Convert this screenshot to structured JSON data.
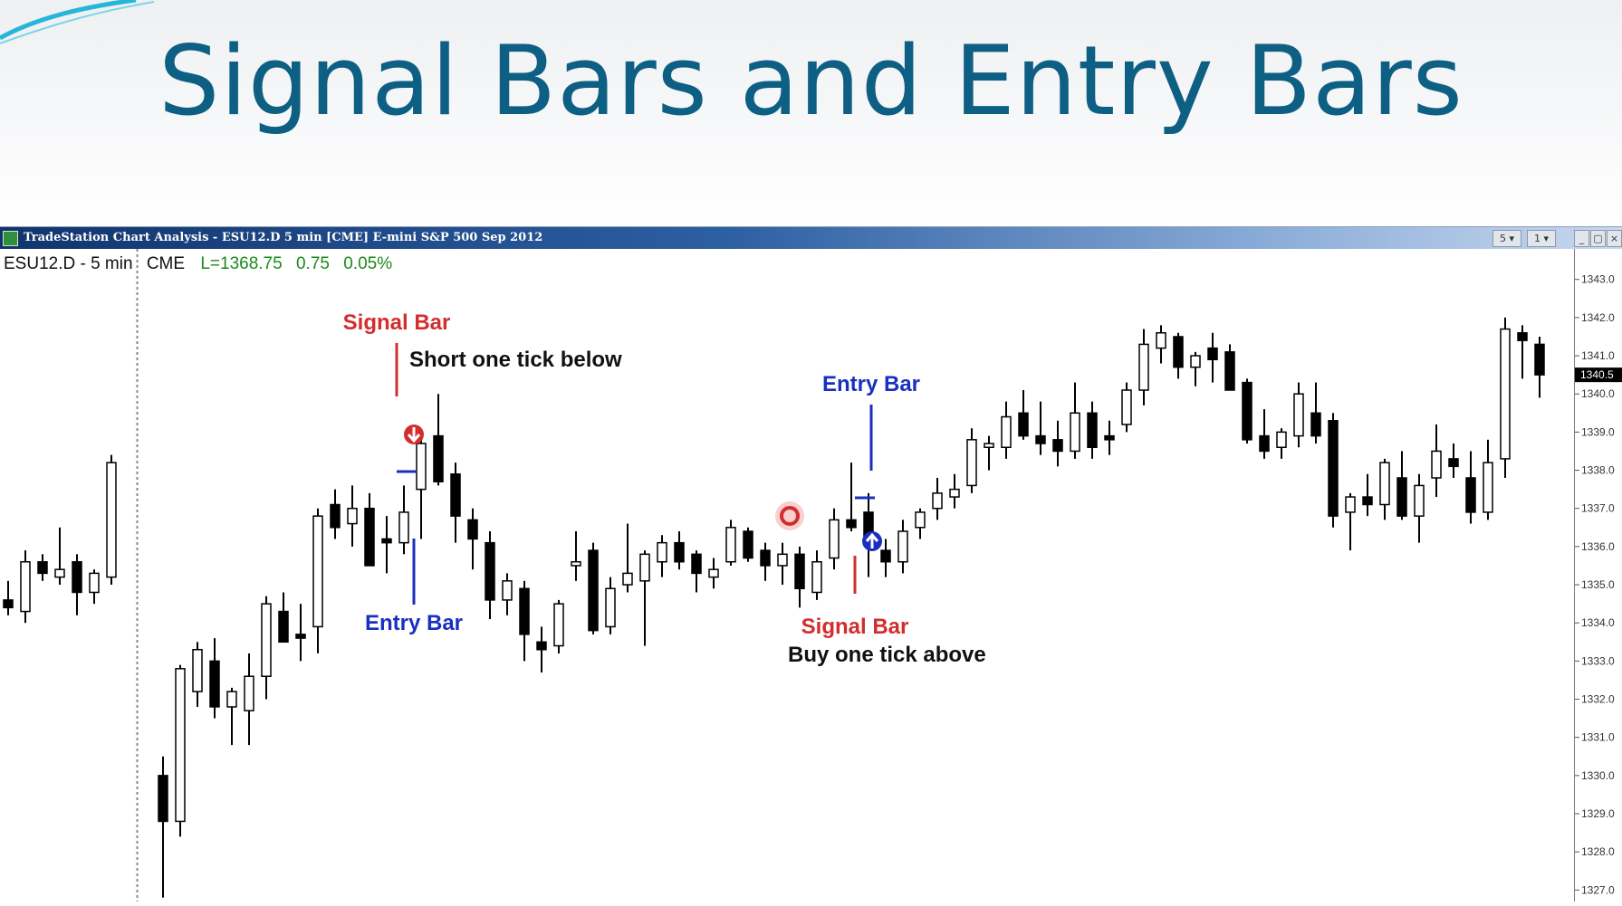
{
  "slide": {
    "title": "Signal Bars and Entry Bars"
  },
  "window": {
    "title": "TradeStation Chart Analysis - ESU12.D 5 min [CME] E-mini S&P 500 Sep 2012",
    "buttons": [
      "5 ▾",
      "1 ▾",
      "_",
      "▢",
      "×"
    ]
  },
  "chart_header": {
    "symbol": "ESU12.D - 5 min",
    "exchange": "CME",
    "last": "L=1368.75",
    "change": "0.75",
    "change_pct": "0.05%"
  },
  "annotations": {
    "signal_bar_1": "Signal Bar",
    "short_note": "Short one tick below",
    "entry_bar_1": "Entry Bar",
    "entry_bar_2": "Entry Bar",
    "signal_bar_2": "Signal Bar",
    "buy_note": "Buy one tick above"
  },
  "colors": {
    "title": "#0e5f84",
    "signal": "#d32d2d",
    "entry": "#1a2fbf",
    "up_candle": "#ffffff",
    "down_candle": "#000000",
    "last_green": "#1c8a1c"
  },
  "chart_data": {
    "type": "candlestick",
    "title": "",
    "xlabel": "",
    "ylabel": "",
    "ylim": [
      1326.7,
      1343.8
    ],
    "y_ticks": [
      {
        "value": 1343,
        "label": "1343.0"
      },
      {
        "value": 1342,
        "label": "1342.0"
      },
      {
        "value": 1341,
        "label": "1341.0"
      },
      {
        "value": 1340,
        "label": "1340.0"
      },
      {
        "value": 1339,
        "label": "1339.0"
      },
      {
        "value": 1338,
        "label": "1338.0"
      },
      {
        "value": 1337,
        "label": "1337.0"
      },
      {
        "value": 1336,
        "label": "1336.0"
      },
      {
        "value": 1335,
        "label": "1335.0"
      },
      {
        "value": 1334,
        "label": "1334.0"
      },
      {
        "value": 1333,
        "label": "1333.0"
      },
      {
        "value": 1332,
        "label": "1332.0"
      },
      {
        "value": 1331,
        "label": "1331.0"
      },
      {
        "value": 1330,
        "label": "1330.0"
      },
      {
        "value": 1329,
        "label": "1329.0"
      },
      {
        "value": 1328,
        "label": "1328.0"
      },
      {
        "value": 1327,
        "label": "1327.0"
      }
    ],
    "current_price_label": "1340.5",
    "session_break_after_index": 6,
    "bars": [
      {
        "o": 1334.6,
        "h": 1335.1,
        "l": 1334.2,
        "c": 1334.4
      },
      {
        "o": 1334.3,
        "h": 1335.9,
        "l": 1334.0,
        "c": 1335.6
      },
      {
        "o": 1335.6,
        "h": 1335.8,
        "l": 1335.1,
        "c": 1335.3
      },
      {
        "o": 1335.2,
        "h": 1336.5,
        "l": 1335.0,
        "c": 1335.4
      },
      {
        "o": 1335.6,
        "h": 1335.8,
        "l": 1334.2,
        "c": 1334.8
      },
      {
        "o": 1334.8,
        "h": 1335.4,
        "l": 1334.5,
        "c": 1335.3
      },
      {
        "o": 1335.2,
        "h": 1338.4,
        "l": 1335.0,
        "c": 1338.2
      },
      {
        "o": 1330.0,
        "h": 1330.5,
        "l": 1326.8,
        "c": 1328.8
      },
      {
        "o": 1328.8,
        "h": 1332.9,
        "l": 1328.4,
        "c": 1332.8
      },
      {
        "o": 1332.2,
        "h": 1333.5,
        "l": 1331.8,
        "c": 1333.3
      },
      {
        "o": 1333.0,
        "h": 1333.6,
        "l": 1331.5,
        "c": 1331.8
      },
      {
        "o": 1331.8,
        "h": 1332.3,
        "l": 1330.8,
        "c": 1332.2
      },
      {
        "o": 1331.7,
        "h": 1333.2,
        "l": 1330.8,
        "c": 1332.6
      },
      {
        "o": 1332.6,
        "h": 1334.7,
        "l": 1332.0,
        "c": 1334.5
      },
      {
        "o": 1334.3,
        "h": 1334.8,
        "l": 1333.5,
        "c": 1333.5
      },
      {
        "o": 1333.7,
        "h": 1334.5,
        "l": 1333.0,
        "c": 1333.6
      },
      {
        "o": 1333.9,
        "h": 1337.0,
        "l": 1333.2,
        "c": 1336.8
      },
      {
        "o": 1337.1,
        "h": 1337.5,
        "l": 1336.2,
        "c": 1336.5
      },
      {
        "o": 1336.6,
        "h": 1337.6,
        "l": 1336.0,
        "c": 1337.0
      },
      {
        "o": 1337.0,
        "h": 1337.4,
        "l": 1335.5,
        "c": 1335.5
      },
      {
        "o": 1336.2,
        "h": 1336.8,
        "l": 1335.3,
        "c": 1336.1
      },
      {
        "o": 1336.1,
        "h": 1337.6,
        "l": 1335.8,
        "c": 1336.9
      },
      {
        "o": 1337.5,
        "h": 1338.9,
        "l": 1336.2,
        "c": 1338.7
      },
      {
        "o": 1338.9,
        "h": 1340.0,
        "l": 1337.6,
        "c": 1337.7
      },
      {
        "o": 1337.9,
        "h": 1338.2,
        "l": 1336.1,
        "c": 1336.8
      },
      {
        "o": 1336.7,
        "h": 1337.0,
        "l": 1335.4,
        "c": 1336.2
      },
      {
        "o": 1336.1,
        "h": 1336.4,
        "l": 1334.1,
        "c": 1334.6
      },
      {
        "o": 1334.6,
        "h": 1335.3,
        "l": 1334.2,
        "c": 1335.1
      },
      {
        "o": 1334.9,
        "h": 1335.1,
        "l": 1333.0,
        "c": 1333.7
      },
      {
        "o": 1333.5,
        "h": 1333.9,
        "l": 1332.7,
        "c": 1333.3
      },
      {
        "o": 1333.4,
        "h": 1334.6,
        "l": 1333.2,
        "c": 1334.5
      },
      {
        "o": 1335.5,
        "h": 1336.4,
        "l": 1335.1,
        "c": 1335.6
      },
      {
        "o": 1335.9,
        "h": 1336.1,
        "l": 1333.7,
        "c": 1333.8
      },
      {
        "o": 1333.9,
        "h": 1335.2,
        "l": 1333.7,
        "c": 1334.9
      },
      {
        "o": 1335.0,
        "h": 1336.6,
        "l": 1334.8,
        "c": 1335.3
      },
      {
        "o": 1335.1,
        "h": 1335.9,
        "l": 1333.4,
        "c": 1335.8
      },
      {
        "o": 1335.6,
        "h": 1336.3,
        "l": 1335.2,
        "c": 1336.1
      },
      {
        "o": 1336.1,
        "h": 1336.4,
        "l": 1335.4,
        "c": 1335.6
      },
      {
        "o": 1335.8,
        "h": 1335.9,
        "l": 1334.8,
        "c": 1335.3
      },
      {
        "o": 1335.2,
        "h": 1335.7,
        "l": 1334.9,
        "c": 1335.4
      },
      {
        "o": 1335.6,
        "h": 1336.7,
        "l": 1335.5,
        "c": 1336.5
      },
      {
        "o": 1336.4,
        "h": 1336.5,
        "l": 1335.6,
        "c": 1335.7
      },
      {
        "o": 1335.9,
        "h": 1336.1,
        "l": 1335.1,
        "c": 1335.5
      },
      {
        "o": 1335.5,
        "h": 1336.1,
        "l": 1335.0,
        "c": 1335.8
      },
      {
        "o": 1335.8,
        "h": 1336.0,
        "l": 1334.4,
        "c": 1334.9
      },
      {
        "o": 1334.8,
        "h": 1335.9,
        "l": 1334.6,
        "c": 1335.6
      },
      {
        "o": 1335.7,
        "h": 1337.0,
        "l": 1335.4,
        "c": 1336.7
      },
      {
        "o": 1336.7,
        "h": 1338.2,
        "l": 1336.4,
        "c": 1336.5
      },
      {
        "o": 1336.9,
        "h": 1337.4,
        "l": 1335.2,
        "c": 1336.1
      },
      {
        "o": 1335.9,
        "h": 1336.2,
        "l": 1335.2,
        "c": 1335.6
      },
      {
        "o": 1335.6,
        "h": 1336.7,
        "l": 1335.3,
        "c": 1336.4
      },
      {
        "o": 1336.5,
        "h": 1337.0,
        "l": 1336.2,
        "c": 1336.9
      },
      {
        "o": 1337.0,
        "h": 1337.8,
        "l": 1336.7,
        "c": 1337.4
      },
      {
        "o": 1337.3,
        "h": 1337.9,
        "l": 1337.0,
        "c": 1337.5
      },
      {
        "o": 1337.6,
        "h": 1339.1,
        "l": 1337.4,
        "c": 1338.8
      },
      {
        "o": 1338.6,
        "h": 1338.9,
        "l": 1338.0,
        "c": 1338.7
      },
      {
        "o": 1338.6,
        "h": 1339.8,
        "l": 1338.3,
        "c": 1339.4
      },
      {
        "o": 1339.5,
        "h": 1340.1,
        "l": 1338.8,
        "c": 1338.9
      },
      {
        "o": 1338.9,
        "h": 1339.8,
        "l": 1338.4,
        "c": 1338.7
      },
      {
        "o": 1338.8,
        "h": 1339.3,
        "l": 1338.1,
        "c": 1338.5
      },
      {
        "o": 1338.5,
        "h": 1340.3,
        "l": 1338.3,
        "c": 1339.5
      },
      {
        "o": 1339.5,
        "h": 1339.8,
        "l": 1338.3,
        "c": 1338.6
      },
      {
        "o": 1338.9,
        "h": 1339.3,
        "l": 1338.4,
        "c": 1338.8
      },
      {
        "o": 1339.2,
        "h": 1340.3,
        "l": 1339.0,
        "c": 1340.1
      },
      {
        "o": 1340.1,
        "h": 1341.7,
        "l": 1339.7,
        "c": 1341.3
      },
      {
        "o": 1341.2,
        "h": 1341.8,
        "l": 1340.8,
        "c": 1341.6
      },
      {
        "o": 1341.5,
        "h": 1341.6,
        "l": 1340.4,
        "c": 1340.7
      },
      {
        "o": 1340.7,
        "h": 1341.1,
        "l": 1340.2,
        "c": 1341.0
      },
      {
        "o": 1341.2,
        "h": 1341.6,
        "l": 1340.3,
        "c": 1340.9
      },
      {
        "o": 1341.1,
        "h": 1341.3,
        "l": 1340.1,
        "c": 1340.1
      },
      {
        "o": 1340.3,
        "h": 1340.4,
        "l": 1338.7,
        "c": 1338.8
      },
      {
        "o": 1338.9,
        "h": 1339.6,
        "l": 1338.3,
        "c": 1338.5
      },
      {
        "o": 1338.6,
        "h": 1339.1,
        "l": 1338.3,
        "c": 1339.0
      },
      {
        "o": 1338.9,
        "h": 1340.3,
        "l": 1338.6,
        "c": 1340.0
      },
      {
        "o": 1339.5,
        "h": 1340.3,
        "l": 1338.7,
        "c": 1338.9
      },
      {
        "o": 1339.3,
        "h": 1339.5,
        "l": 1336.5,
        "c": 1336.8
      },
      {
        "o": 1336.9,
        "h": 1337.4,
        "l": 1335.9,
        "c": 1337.3
      },
      {
        "o": 1337.3,
        "h": 1337.9,
        "l": 1336.8,
        "c": 1337.1
      },
      {
        "o": 1337.1,
        "h": 1338.3,
        "l": 1336.7,
        "c": 1338.2
      },
      {
        "o": 1337.8,
        "h": 1338.5,
        "l": 1336.7,
        "c": 1336.8
      },
      {
        "o": 1336.8,
        "h": 1337.9,
        "l": 1336.1,
        "c": 1337.6
      },
      {
        "o": 1337.8,
        "h": 1339.2,
        "l": 1337.3,
        "c": 1338.5
      },
      {
        "o": 1338.3,
        "h": 1338.7,
        "l": 1337.8,
        "c": 1338.1
      },
      {
        "o": 1337.8,
        "h": 1338.5,
        "l": 1336.6,
        "c": 1336.9
      },
      {
        "o": 1336.9,
        "h": 1338.8,
        "l": 1336.7,
        "c": 1338.2
      },
      {
        "o": 1338.3,
        "h": 1342.0,
        "l": 1337.8,
        "c": 1341.7
      },
      {
        "o": 1341.6,
        "h": 1341.8,
        "l": 1340.4,
        "c": 1341.4
      },
      {
        "o": 1341.3,
        "h": 1341.5,
        "l": 1339.9,
        "c": 1340.5
      }
    ]
  }
}
